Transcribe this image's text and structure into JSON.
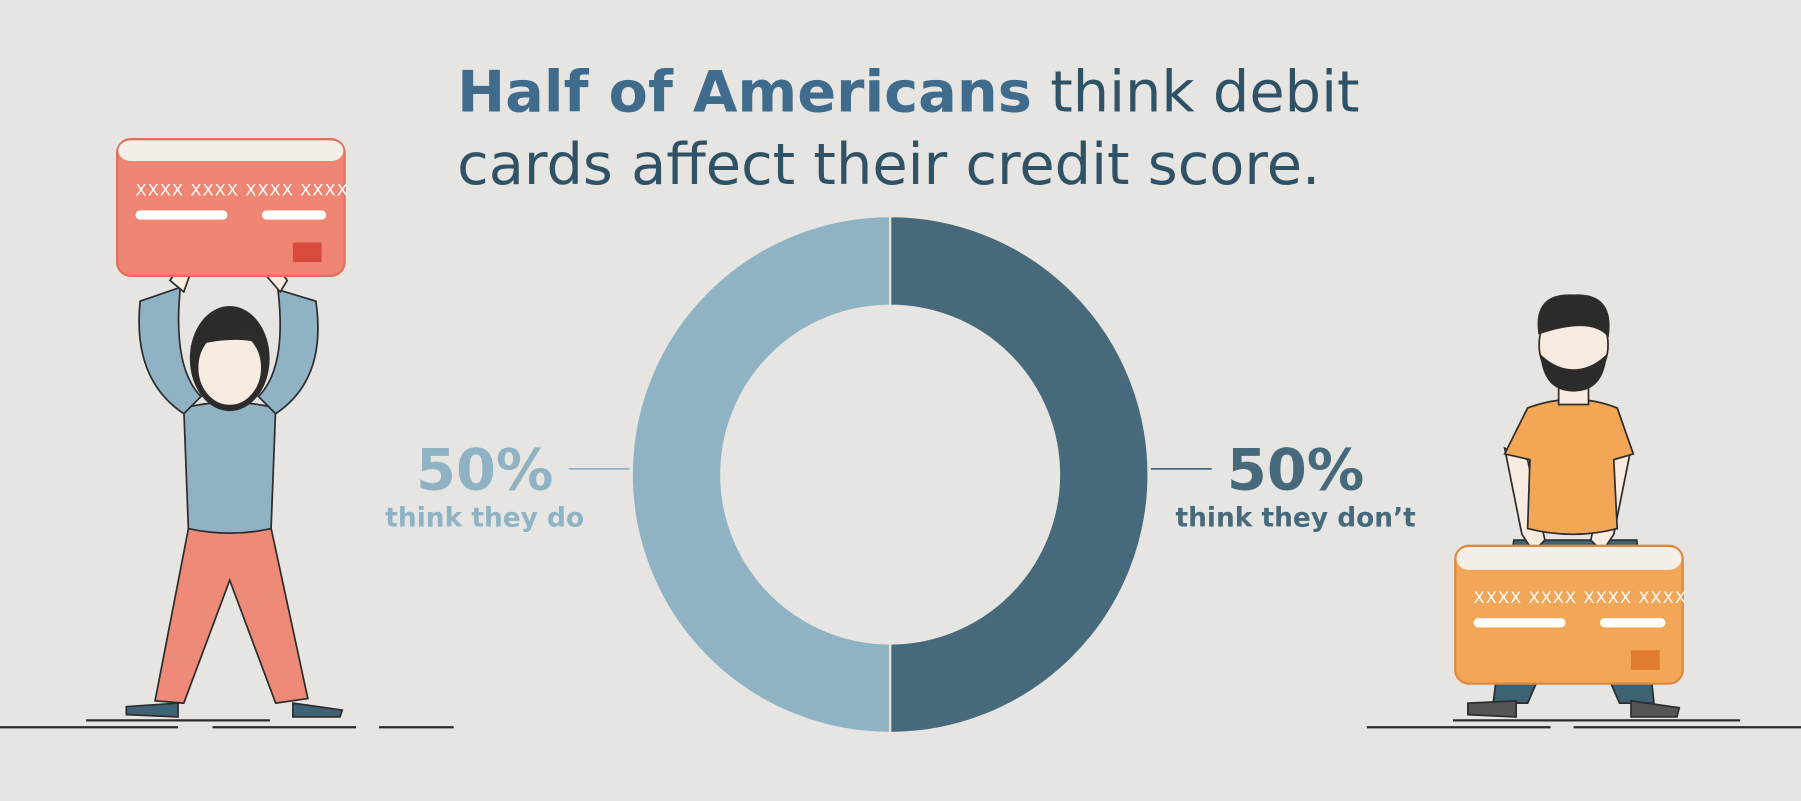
{
  "chart_data": {
    "type": "donut",
    "title": {
      "emphasis": "Half of Americans",
      "lines": [
        "think debit",
        "cards affect their credit score."
      ]
    },
    "categories": [
      "think they do",
      "think they don’t"
    ],
    "values": [
      50,
      50
    ],
    "value_labels": [
      "50%",
      "50%"
    ],
    "colors": [
      "#8fb3c4",
      "#466a7b"
    ],
    "start": "top",
    "direction": "counterclockwise-left-first"
  },
  "illustrations": {
    "card_numbers": [
      "XXXX XXXX XXXX XXXX",
      "XXXX XXXX XXXX XXXX"
    ]
  }
}
